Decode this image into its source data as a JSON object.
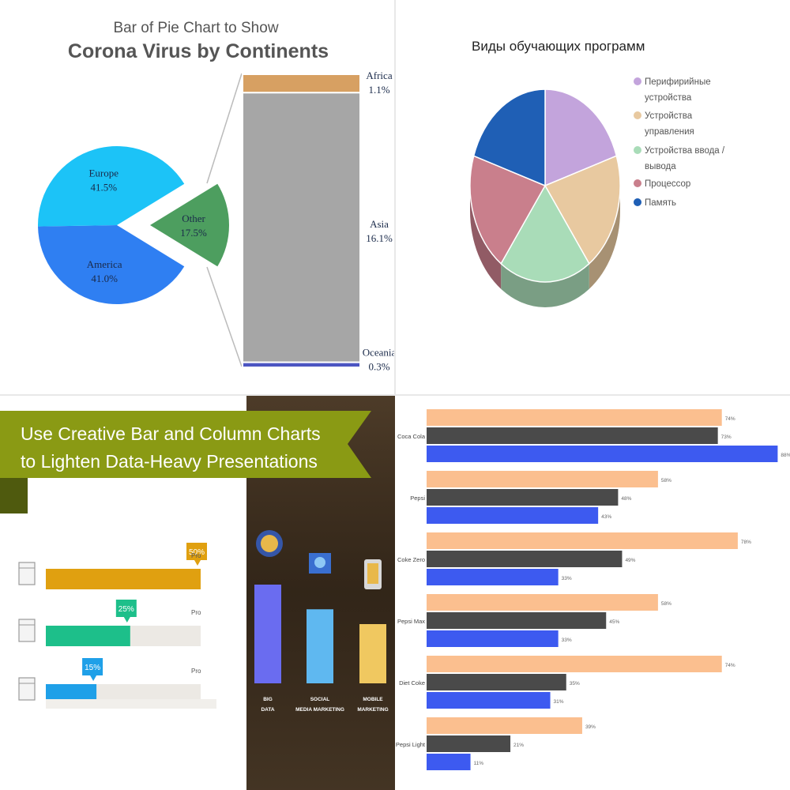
{
  "chart_data": [
    {
      "type": "pie",
      "subtype": "bar-of-pie",
      "title": "Corona Virus by Continents",
      "subtitle": "Bar of Pie Chart to Show",
      "slices": [
        {
          "label": "Europe",
          "value": 41.5,
          "display": "41.5%",
          "color": "#1cc3f7"
        },
        {
          "label": "America",
          "value": 41.0,
          "display": "41.0%",
          "color": "#2f7ff2"
        },
        {
          "label": "Other",
          "value": 17.5,
          "display": "17.5%",
          "color": "#4d9e5f"
        }
      ],
      "bar_breakdown": [
        {
          "label": "Africa",
          "value": 1.1,
          "display": "1.1%",
          "color": "#d7a062"
        },
        {
          "label": "Asia",
          "value": 16.1,
          "display": "16.1%",
          "color": "#a6a6a6"
        },
        {
          "label": "Oceania",
          "value": 0.3,
          "display": "0.3%",
          "color": "#4c55c2"
        }
      ]
    },
    {
      "type": "pie",
      "title": "Виды обучающих программ",
      "legend_position": "right",
      "slices": [
        {
          "label": "Перифирийные устройства",
          "value": 20,
          "color": "#c3a4dc"
        },
        {
          "label": "Устройства управления",
          "value": 20,
          "color": "#e8c9a0"
        },
        {
          "label": "Устройства ввода / вывода",
          "value": 20,
          "color": "#a9dcb8"
        },
        {
          "label": "Процессор",
          "value": 20,
          "color": "#c97f8c"
        },
        {
          "label": "Память",
          "value": 20,
          "color": "#1f5fb5"
        }
      ]
    },
    {
      "type": "bar",
      "title": "Use Creative Bar and Column Charts to Lighten Data-Heavy Presentations",
      "horizontal_bars": [
        {
          "value": 50,
          "display": "50%",
          "label": "Pro",
          "color": "#e0a010"
        },
        {
          "value": 25,
          "display": "25%",
          "label": "Pro",
          "color": "#1dbf8a"
        },
        {
          "value": 15,
          "display": "15%",
          "label": "Pro",
          "color": "#1fa0e8"
        }
      ],
      "columns": [
        {
          "label": "BIG DATA",
          "value": 100,
          "color": "#6a6cf0"
        },
        {
          "label": "SOCIAL MEDIA MARKETING",
          "value": 75,
          "color": "#5fb8f0"
        },
        {
          "label": "MOBILE MARKETING",
          "value": 60,
          "color": "#f0c860"
        }
      ]
    },
    {
      "type": "bar",
      "orientation": "horizontal",
      "categories": [
        "Coca Cola",
        "Pepsi",
        "Coke Zero",
        "Pepsi Max",
        "Diet Coke",
        "Pepsi Light"
      ],
      "series": [
        {
          "color": "#fbbf8f",
          "values": [
            74,
            58,
            78,
            58,
            74,
            39
          ],
          "labels": [
            "74%",
            "58%",
            "78%",
            "58%",
            "74%",
            "39%"
          ]
        },
        {
          "color": "#4a4a4a",
          "values": [
            73,
            48,
            49,
            45,
            35,
            21
          ],
          "labels": [
            "73%",
            "48%",
            "49%",
            "45%",
            "35%",
            "21%"
          ]
        },
        {
          "color": "#3d5af0",
          "values": [
            88,
            43,
            33,
            33,
            31,
            11
          ],
          "labels": [
            "88%",
            "43%",
            "33%",
            "33%",
            "31%",
            "11%"
          ]
        }
      ]
    }
  ]
}
